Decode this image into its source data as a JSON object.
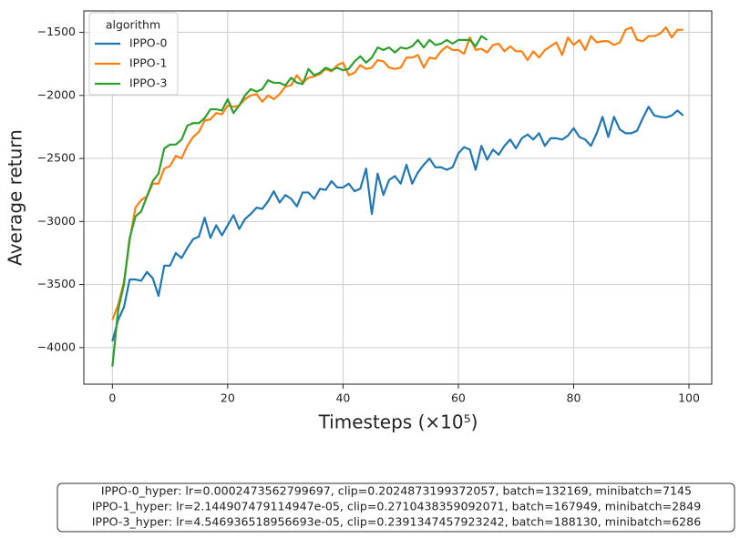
{
  "chart_data": {
    "type": "line",
    "x_label": "Timesteps (×10⁵)",
    "y_label": "Average return",
    "legend_title": "algorithm",
    "legend_position": "upper left",
    "grid": true,
    "x": [
      0,
      1,
      2,
      3,
      4,
      5,
      6,
      7,
      8,
      9,
      10,
      11,
      12,
      13,
      14,
      15,
      16,
      17,
      18,
      19,
      20,
      21,
      22,
      23,
      24,
      25,
      26,
      27,
      28,
      29,
      30,
      31,
      32,
      33,
      34,
      35,
      36,
      37,
      38,
      39,
      40,
      41,
      42,
      43,
      44,
      45,
      46,
      47,
      48,
      49,
      50,
      51,
      52,
      53,
      54,
      55,
      56,
      57,
      58,
      59,
      60,
      61,
      62,
      63,
      64,
      65,
      66,
      67,
      68,
      69,
      70,
      71,
      72,
      73,
      74,
      75,
      76,
      77,
      78,
      79,
      80,
      81,
      82,
      83,
      84,
      85,
      86,
      87,
      88,
      89,
      90,
      91,
      92,
      93,
      94,
      95,
      96,
      97,
      98,
      99
    ],
    "series": [
      {
        "name": "IPPO-0",
        "color": "#1f77b4",
        "values": [
          -3950,
          -3780,
          -3680,
          -3460,
          -3460,
          -3470,
          -3400,
          -3450,
          -3590,
          -3350,
          -3350,
          -3250,
          -3290,
          -3210,
          -3140,
          -3120,
          -2970,
          -3130,
          -3030,
          -3110,
          -3030,
          -2950,
          -3060,
          -2980,
          -2940,
          -2890,
          -2900,
          -2840,
          -2760,
          -2850,
          -2790,
          -2820,
          -2880,
          -2770,
          -2770,
          -2820,
          -2740,
          -2750,
          -2680,
          -2730,
          -2730,
          -2700,
          -2760,
          -2740,
          -2580,
          -2940,
          -2620,
          -2790,
          -2670,
          -2640,
          -2700,
          -2550,
          -2700,
          -2610,
          -2550,
          -2500,
          -2570,
          -2570,
          -2590,
          -2570,
          -2460,
          -2410,
          -2430,
          -2590,
          -2400,
          -2510,
          -2430,
          -2470,
          -2400,
          -2350,
          -2420,
          -2340,
          -2310,
          -2350,
          -2300,
          -2400,
          -2340,
          -2340,
          -2350,
          -2320,
          -2260,
          -2330,
          -2350,
          -2400,
          -2300,
          -2170,
          -2330,
          -2170,
          -2270,
          -2300,
          -2300,
          -2280,
          -2180,
          -2090,
          -2160,
          -2170,
          -2175,
          -2160,
          -2120,
          -2160
        ]
      },
      {
        "name": "IPPO-1",
        "color": "#ff7f0e",
        "values": [
          -3780,
          -3660,
          -3480,
          -3150,
          -2890,
          -2830,
          -2800,
          -2700,
          -2700,
          -2580,
          -2560,
          -2480,
          -2500,
          -2400,
          -2330,
          -2290,
          -2200,
          -2190,
          -2140,
          -2150,
          -2080,
          -2090,
          -2080,
          -2030,
          -2000,
          -1990,
          -2050,
          -2000,
          -2030,
          -1990,
          -1930,
          -1920,
          -1840,
          -1900,
          -1860,
          -1850,
          -1830,
          -1790,
          -1810,
          -1760,
          -1740,
          -1840,
          -1820,
          -1760,
          -1790,
          -1780,
          -1720,
          -1730,
          -1780,
          -1790,
          -1780,
          -1700,
          -1700,
          -1680,
          -1780,
          -1700,
          -1710,
          -1650,
          -1610,
          -1640,
          -1640,
          -1670,
          -1540,
          -1640,
          -1630,
          -1660,
          -1600,
          -1590,
          -1650,
          -1610,
          -1650,
          -1650,
          -1720,
          -1650,
          -1700,
          -1640,
          -1610,
          -1580,
          -1680,
          -1540,
          -1600,
          -1560,
          -1640,
          -1530,
          -1580,
          -1570,
          -1570,
          -1600,
          -1580,
          -1480,
          -1460,
          -1560,
          -1570,
          -1530,
          -1530,
          -1510,
          -1460,
          -1540,
          -1480,
          -1480
        ]
      },
      {
        "name": "IPPO-3",
        "color": "#2ca02c",
        "values": [
          -4150,
          -3700,
          -3500,
          -3130,
          -2960,
          -2920,
          -2800,
          -2680,
          -2620,
          -2420,
          -2390,
          -2390,
          -2350,
          -2240,
          -2220,
          -2220,
          -2180,
          -2110,
          -2110,
          -2120,
          -2030,
          -2140,
          -2080,
          -2000,
          -1950,
          -1970,
          -1950,
          -1880,
          -1900,
          -1900,
          -1920,
          -1860,
          -1900,
          -1910,
          -1790,
          -1840,
          -1820,
          -1780,
          -1800,
          -1780,
          -1800,
          -1790,
          -1730,
          -1690,
          -1740,
          -1700,
          -1620,
          -1640,
          -1620,
          -1660,
          -1620,
          -1630,
          -1610,
          -1560,
          -1620,
          -1560,
          -1600,
          -1590,
          -1560,
          -1590,
          -1560,
          -1560,
          -1560,
          -1610,
          -1530,
          -1560,
          null,
          null,
          null,
          null,
          null,
          null,
          null,
          null,
          null,
          null,
          null,
          null,
          null,
          null,
          null,
          null,
          null,
          null,
          null,
          null,
          null,
          null,
          null,
          null,
          null,
          null,
          null,
          null,
          null,
          null,
          null,
          null,
          null,
          null
        ]
      }
    ],
    "xlim": [
      -4.95,
      103.95
    ],
    "ylim": [
      -4290,
      -1330
    ],
    "xticks": [
      0,
      20,
      40,
      60,
      80,
      100
    ],
    "yticks": [
      {
        "value": -4000,
        "label": "−4000"
      },
      {
        "value": -3500,
        "label": "−3500"
      },
      {
        "value": -3000,
        "label": "−3000"
      },
      {
        "value": -2500,
        "label": "−2500"
      },
      {
        "value": -2000,
        "label": "−2000"
      },
      {
        "value": -1500,
        "label": "−1500"
      }
    ],
    "annotation": [
      "IPPO-0_hyper: lr=0.0002473562799697, clip=0.2024873199372057, batch=132169, minibatch=7145",
      "IPPO-1_hyper: lr=2.144907479114947e-05, clip=0.2710438359092071, batch=167949, minibatch=2849",
      "IPPO-3_hyper: lr=4.546936518956693e-05, clip=0.2391347457923242, batch=188130, minibatch=6286"
    ]
  }
}
